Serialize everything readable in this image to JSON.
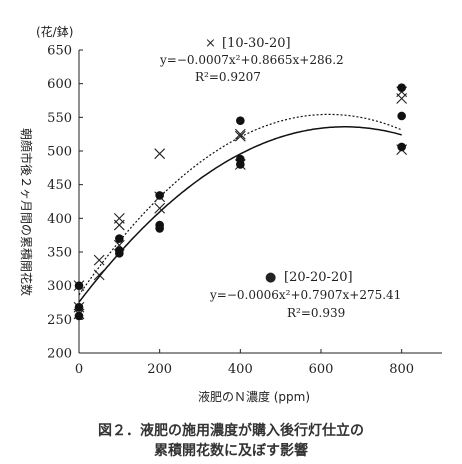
{
  "chart_data": {
    "type": "scatter",
    "unit_label": "(花/鉢)",
    "ylabel": "朝顔市後２ヶ月間の累積開花数",
    "xlabel": "液肥のＮ濃度 (ppm)",
    "xlim": [
      0,
      900
    ],
    "ylim": [
      200,
      650
    ],
    "x_ticks": [
      0,
      200,
      400,
      600,
      800
    ],
    "y_ticks": [
      200,
      250,
      300,
      350,
      400,
      450,
      500,
      550,
      600,
      650
    ],
    "series": [
      {
        "name": "[10-30-20]",
        "legend_symbol": "×",
        "marker": "x",
        "equation": "y=−0.0007x²+0.8665x+286.2",
        "r2": "R²=0.9207",
        "fit": {
          "a": -0.0007,
          "b": 0.8665,
          "c": 286.2
        },
        "points": [
          {
            "x": 0,
            "y": 300
          },
          {
            "x": 0,
            "y": 268
          },
          {
            "x": 0,
            "y": 258
          },
          {
            "x": 50,
            "y": 338
          },
          {
            "x": 50,
            "y": 316
          },
          {
            "x": 100,
            "y": 400
          },
          {
            "x": 100,
            "y": 390
          },
          {
            "x": 100,
            "y": 360
          },
          {
            "x": 200,
            "y": 496
          },
          {
            "x": 200,
            "y": 432
          },
          {
            "x": 200,
            "y": 415
          },
          {
            "x": 400,
            "y": 525
          },
          {
            "x": 400,
            "y": 522
          },
          {
            "x": 400,
            "y": 480
          },
          {
            "x": 800,
            "y": 588
          },
          {
            "x": 800,
            "y": 578
          },
          {
            "x": 800,
            "y": 502
          }
        ]
      },
      {
        "name": "[20-20-20]",
        "legend_symbol": "●",
        "marker": "dot",
        "equation": "y=−0.0006x²+0.7907x+275.41",
        "r2": "R²=0.939",
        "fit": {
          "a": -0.0006,
          "b": 0.7907,
          "c": 275.41
        },
        "points": [
          {
            "x": 0,
            "y": 300
          },
          {
            "x": 0,
            "y": 268
          },
          {
            "x": 0,
            "y": 255
          },
          {
            "x": 100,
            "y": 370
          },
          {
            "x": 100,
            "y": 352
          },
          {
            "x": 100,
            "y": 348
          },
          {
            "x": 200,
            "y": 434
          },
          {
            "x": 200,
            "y": 390
          },
          {
            "x": 200,
            "y": 385
          },
          {
            "x": 400,
            "y": 545
          },
          {
            "x": 400,
            "y": 488
          },
          {
            "x": 400,
            "y": 480
          },
          {
            "x": 800,
            "y": 594
          },
          {
            "x": 800,
            "y": 552
          },
          {
            "x": 800,
            "y": 506
          }
        ]
      }
    ]
  },
  "caption": {
    "line1": "図２．液肥の施用濃度が購入後行灯仕立の",
    "line2": "累積開花数に及ぼす影響"
  }
}
